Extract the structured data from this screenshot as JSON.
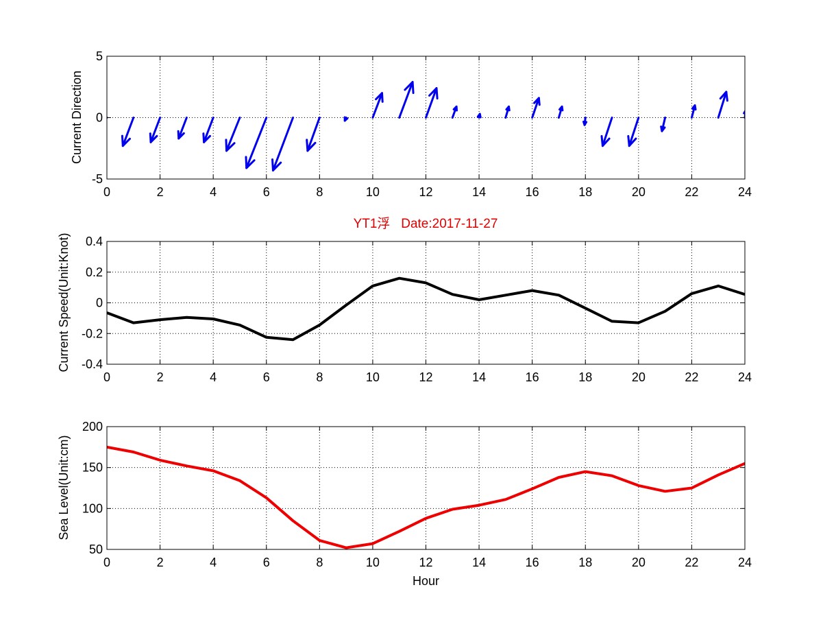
{
  "figure": {
    "title": "YT1浮   Date:2017-11-27",
    "title_color": "#e00000"
  },
  "chart_data": [
    {
      "type": "quiver",
      "xlabel": "",
      "ylabel": "Current Direction",
      "xlim": [
        0,
        24
      ],
      "ylim": [
        -5,
        5
      ],
      "xticks": [
        0,
        2,
        4,
        6,
        8,
        10,
        12,
        14,
        16,
        18,
        20,
        22,
        24
      ],
      "yticks": [
        -5,
        0,
        5
      ],
      "grid": true,
      "color": "#0000ee",
      "vectors": [
        {
          "x": 0,
          "u": -0.02,
          "v": 0.0
        },
        {
          "x": 1,
          "u": -0.4,
          "v": -2.3
        },
        {
          "x": 2,
          "u": -0.35,
          "v": -2.0
        },
        {
          "x": 3,
          "u": -0.3,
          "v": -1.7
        },
        {
          "x": 4,
          "u": -0.35,
          "v": -2.0
        },
        {
          "x": 5,
          "u": -0.5,
          "v": -2.7
        },
        {
          "x": 6,
          "u": -0.75,
          "v": -4.1
        },
        {
          "x": 7,
          "u": -0.75,
          "v": -4.3
        },
        {
          "x": 8,
          "u": -0.45,
          "v": -2.7
        },
        {
          "x": 9,
          "u": -0.05,
          "v": -0.25
        },
        {
          "x": 10,
          "u": 0.35,
          "v": 2.0
        },
        {
          "x": 11,
          "u": 0.5,
          "v": 2.9
        },
        {
          "x": 12,
          "u": 0.4,
          "v": 2.4
        },
        {
          "x": 13,
          "u": 0.15,
          "v": 0.9
        },
        {
          "x": 14,
          "u": 0.03,
          "v": 0.3
        },
        {
          "x": 15,
          "u": 0.12,
          "v": 0.9
        },
        {
          "x": 16,
          "u": 0.25,
          "v": 1.6
        },
        {
          "x": 17,
          "u": 0.12,
          "v": 0.9
        },
        {
          "x": 18,
          "u": -0.03,
          "v": -0.6
        },
        {
          "x": 19,
          "u": -0.35,
          "v": -2.3
        },
        {
          "x": 20,
          "u": -0.35,
          "v": -2.3
        },
        {
          "x": 21,
          "u": -0.12,
          "v": -1.1
        },
        {
          "x": 22,
          "u": 0.12,
          "v": 1.0
        },
        {
          "x": 23,
          "u": 0.3,
          "v": 2.1
        },
        {
          "x": 24,
          "u": 0.03,
          "v": 0.6
        }
      ]
    },
    {
      "type": "line",
      "xlabel": "",
      "ylabel": "Current Speed(Unit:Knot)",
      "xlim": [
        0,
        24
      ],
      "ylim": [
        -0.4,
        0.4
      ],
      "xticks": [
        0,
        2,
        4,
        6,
        8,
        10,
        12,
        14,
        16,
        18,
        20,
        22,
        24
      ],
      "yticks": [
        -0.4,
        -0.2,
        0,
        0.2,
        0.4
      ],
      "ytick_labels": [
        "-0.4",
        "-0.2",
        "0",
        "0.2",
        "0.4"
      ],
      "grid": true,
      "color": "#000000",
      "x": [
        0,
        1,
        2,
        3,
        4,
        5,
        6,
        7,
        8,
        9,
        10,
        11,
        12,
        13,
        14,
        15,
        16,
        17,
        18,
        19,
        20,
        21,
        22,
        23,
        24
      ],
      "y": [
        -0.065,
        -0.13,
        -0.11,
        -0.095,
        -0.105,
        -0.145,
        -0.225,
        -0.24,
        -0.145,
        -0.015,
        0.11,
        0.16,
        0.13,
        0.055,
        0.02,
        0.05,
        0.08,
        0.05,
        -0.035,
        -0.12,
        -0.13,
        -0.055,
        0.06,
        0.11,
        0.055
      ]
    },
    {
      "type": "line",
      "xlabel": "Hour",
      "ylabel": "Sea Level(Unit:cm)",
      "xlim": [
        0,
        24
      ],
      "ylim": [
        50,
        200
      ],
      "xticks": [
        0,
        2,
        4,
        6,
        8,
        10,
        12,
        14,
        16,
        18,
        20,
        22,
        24
      ],
      "yticks": [
        50,
        100,
        150,
        200
      ],
      "grid": true,
      "color": "#ee0000",
      "x": [
        0,
        1,
        2,
        3,
        4,
        5,
        6,
        7,
        8,
        9,
        10,
        11,
        12,
        13,
        14,
        15,
        16,
        17,
        18,
        19,
        20,
        21,
        22,
        23,
        24
      ],
      "y": [
        175,
        169,
        159,
        152,
        146,
        134,
        113,
        85,
        61,
        52,
        57,
        72,
        88,
        99,
        104,
        111,
        124,
        138,
        145,
        140,
        128,
        121,
        125,
        141,
        155
      ]
    }
  ]
}
